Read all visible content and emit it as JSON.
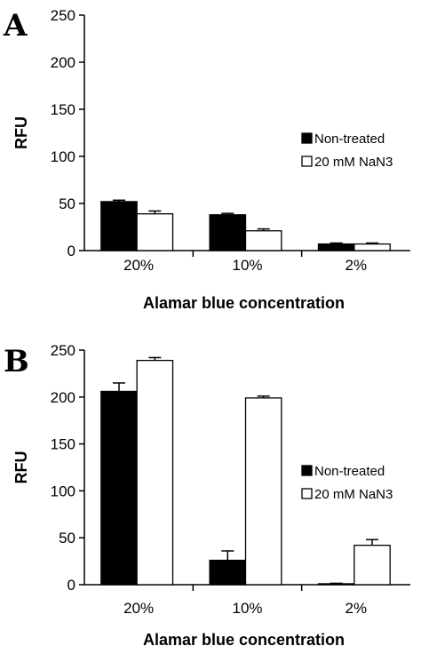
{
  "chart_data": [
    {
      "type": "bar",
      "panel": "A",
      "categories": [
        "20%",
        "10%",
        "2%"
      ],
      "series": [
        {
          "name": "Non-treated",
          "values": [
            52,
            38,
            7
          ],
          "errors": [
            1.5,
            1.5,
            1
          ],
          "color": "#000000"
        },
        {
          "name": "20 mM NaN3",
          "values": [
            39,
            21,
            7
          ],
          "errors": [
            3,
            2,
            1
          ],
          "color": "#ffffff"
        }
      ],
      "xlabel": "Alamar blue concentration",
      "ylabel": "RFU",
      "ylim": [
        0,
        250
      ],
      "yticks": [
        "0",
        "50",
        "100",
        "150",
        "200",
        "250"
      ],
      "legend_position": "right",
      "grid": false
    },
    {
      "type": "bar",
      "panel": "B",
      "categories": [
        "20%",
        "10%",
        "2%"
      ],
      "series": [
        {
          "name": "Non-treated",
          "values": [
            206,
            26,
            1
          ],
          "errors": [
            9,
            10,
            0.5
          ],
          "color": "#000000"
        },
        {
          "name": "20 mM NaN3",
          "values": [
            239,
            199,
            42
          ],
          "errors": [
            3,
            2,
            6
          ],
          "color": "#ffffff"
        }
      ],
      "xlabel": "Alamar blue concentration",
      "ylabel": "RFU",
      "ylim": [
        0,
        250
      ],
      "yticks": [
        "0",
        "50",
        "100",
        "150",
        "200",
        "250"
      ],
      "legend_position": "right",
      "grid": false
    }
  ]
}
